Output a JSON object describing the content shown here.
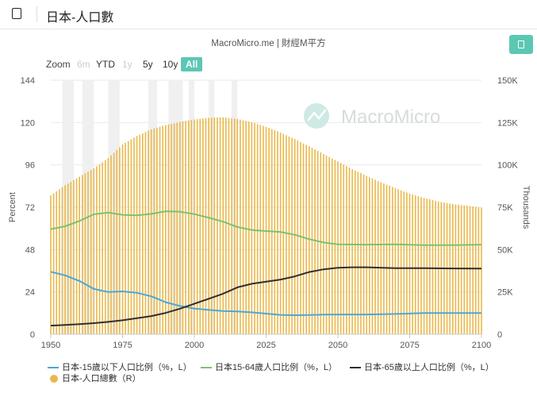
{
  "header": {
    "title": "日本-人口數",
    "menu_icon": "book-icon"
  },
  "source_label": "MacroMicro.me | 財經M平方",
  "watermark": "MacroMicro",
  "expand_icon": "expand-icon",
  "zoom": {
    "label": "Zoom",
    "buttons": [
      {
        "label": "6m",
        "state": "disabled"
      },
      {
        "label": "YTD",
        "state": "normal"
      },
      {
        "label": "1y",
        "state": "disabled"
      },
      {
        "label": "5y",
        "state": "normal"
      },
      {
        "label": "10y",
        "state": "normal"
      },
      {
        "label": "All",
        "state": "active"
      }
    ]
  },
  "chart_data": {
    "type": "bar",
    "x_range": [
      1950,
      2100
    ],
    "x_ticks": [
      "1950",
      "1975",
      "2000",
      "2025",
      "2050",
      "2075",
      "2100"
    ],
    "left_axis": {
      "label": "Percent",
      "range": [
        0,
        144
      ],
      "ticks": [
        "0",
        "24",
        "48",
        "72",
        "96",
        "120",
        "144"
      ]
    },
    "right_axis": {
      "label": "Thousands",
      "range": [
        0,
        150000
      ],
      "ticks": [
        "0",
        "25K",
        "50K",
        "75K",
        "100K",
        "125K",
        "150K"
      ]
    },
    "grid": true,
    "legend_position": "bottom",
    "series": [
      {
        "name": "日本-15歲以下人口比例（%，L）",
        "type": "line",
        "axis": "left",
        "color": "#4aa8d8",
        "points": [
          [
            1950,
            35.4
          ],
          [
            1955,
            33.4
          ],
          [
            1960,
            30.2
          ],
          [
            1965,
            25.7
          ],
          [
            1970,
            24.0
          ],
          [
            1975,
            24.3
          ],
          [
            1980,
            23.5
          ],
          [
            1985,
            21.5
          ],
          [
            1990,
            18.2
          ],
          [
            1995,
            16.0
          ],
          [
            2000,
            14.6
          ],
          [
            2005,
            13.8
          ],
          [
            2010,
            13.2
          ],
          [
            2015,
            12.9
          ],
          [
            2020,
            12.4
          ],
          [
            2025,
            11.7
          ],
          [
            2030,
            11.0
          ],
          [
            2035,
            10.8
          ],
          [
            2040,
            10.9
          ],
          [
            2045,
            11.1
          ],
          [
            2050,
            11.2
          ],
          [
            2060,
            11.2
          ],
          [
            2070,
            11.5
          ],
          [
            2080,
            12.0
          ],
          [
            2090,
            12.0
          ],
          [
            2100,
            12.0
          ]
        ]
      },
      {
        "name": "日本15-64歲人口比例（%，L）",
        "type": "line",
        "axis": "left",
        "color": "#7cc36b",
        "points": [
          [
            1950,
            59.6
          ],
          [
            1955,
            61.2
          ],
          [
            1960,
            64.2
          ],
          [
            1965,
            68.0
          ],
          [
            1970,
            69.0
          ],
          [
            1975,
            67.7
          ],
          [
            1980,
            67.4
          ],
          [
            1985,
            68.2
          ],
          [
            1990,
            69.7
          ],
          [
            1995,
            69.5
          ],
          [
            2000,
            68.1
          ],
          [
            2005,
            66.1
          ],
          [
            2010,
            63.8
          ],
          [
            2015,
            60.8
          ],
          [
            2020,
            59.1
          ],
          [
            2025,
            58.5
          ],
          [
            2030,
            58.0
          ],
          [
            2035,
            56.4
          ],
          [
            2040,
            53.9
          ],
          [
            2045,
            52.0
          ],
          [
            2050,
            51.0
          ],
          [
            2060,
            50.8
          ],
          [
            2070,
            51.0
          ],
          [
            2080,
            50.5
          ],
          [
            2090,
            50.5
          ],
          [
            2100,
            50.8
          ]
        ]
      },
      {
        "name": "日本-65歲以上人口比例（%，L）",
        "type": "line",
        "axis": "left",
        "color": "#2f2f2f",
        "points": [
          [
            1950,
            4.9
          ],
          [
            1955,
            5.3
          ],
          [
            1960,
            5.7
          ],
          [
            1965,
            6.3
          ],
          [
            1970,
            7.0
          ],
          [
            1975,
            7.9
          ],
          [
            1980,
            9.1
          ],
          [
            1985,
            10.3
          ],
          [
            1990,
            12.1
          ],
          [
            1995,
            14.5
          ],
          [
            2000,
            17.3
          ],
          [
            2005,
            20.1
          ],
          [
            2010,
            23.0
          ],
          [
            2015,
            26.6
          ],
          [
            2020,
            28.6
          ],
          [
            2025,
            29.8
          ],
          [
            2030,
            31.0
          ],
          [
            2035,
            32.8
          ],
          [
            2040,
            35.3
          ],
          [
            2045,
            36.8
          ],
          [
            2050,
            37.7
          ],
          [
            2055,
            38.0
          ],
          [
            2060,
            38.0
          ],
          [
            2070,
            37.5
          ],
          [
            2080,
            37.5
          ],
          [
            2090,
            37.3
          ],
          [
            2100,
            37.2
          ]
        ]
      },
      {
        "name": "日本-人口總數（R）",
        "type": "column",
        "axis": "right",
        "color": "#eab84a",
        "points": [
          [
            1950,
            82000
          ],
          [
            1955,
            88000
          ],
          [
            1960,
            93000
          ],
          [
            1965,
            98000
          ],
          [
            1970,
            104000
          ],
          [
            1975,
            112000
          ],
          [
            1980,
            117000
          ],
          [
            1985,
            121000
          ],
          [
            1990,
            123500
          ],
          [
            1995,
            125400
          ],
          [
            2000,
            126800
          ],
          [
            2005,
            127800
          ],
          [
            2010,
            128100
          ],
          [
            2015,
            127100
          ],
          [
            2020,
            125200
          ],
          [
            2025,
            122500
          ],
          [
            2030,
            119100
          ],
          [
            2035,
            115200
          ],
          [
            2040,
            111000
          ],
          [
            2045,
            106400
          ],
          [
            2050,
            102000
          ],
          [
            2055,
            97500
          ],
          [
            2060,
            93500
          ],
          [
            2065,
            89700
          ],
          [
            2070,
            86300
          ],
          [
            2075,
            83000
          ],
          [
            2080,
            80500
          ],
          [
            2085,
            78400
          ],
          [
            2090,
            76900
          ],
          [
            2095,
            75900
          ],
          [
            2100,
            74800
          ]
        ]
      }
    ]
  }
}
